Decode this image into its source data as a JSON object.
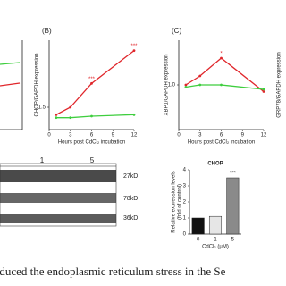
{
  "chart_data": [
    {
      "type": "line",
      "title": "(B)",
      "xlabel": "Hours post CdCl₂ incubation",
      "ylabel": "CHOP/GAPDH expression",
      "x": [
        1,
        3,
        6,
        12
      ],
      "xlim": [
        0,
        12
      ],
      "xticks": [
        0,
        3,
        6,
        9,
        12
      ],
      "ylim": [
        0,
        6
      ],
      "yticks": [
        {
          "value": 1.5,
          "label": "1.5"
        }
      ],
      "series": [
        {
          "color": "#e0262b",
          "values": [
            1.0,
            1.5,
            3.1,
            5.3
          ],
          "annotations": [
            null,
            null,
            "***",
            "***"
          ]
        },
        {
          "color": "#3fce3f",
          "values": [
            0.8,
            0.8,
            0.9,
            1.0
          ]
        }
      ]
    },
    {
      "type": "line",
      "title": "(C)",
      "xlabel": "Hours post CdCl₂ incubation",
      "ylabel": "XBP1/GAPDH expression",
      "x": [
        1,
        3,
        6,
        12
      ],
      "xlim": [
        0,
        12
      ],
      "xticks": [
        0,
        3,
        6,
        9,
        12
      ],
      "ylim": [
        0,
        2
      ],
      "yticks": [
        {
          "value": 1.0,
          "label": "1.0"
        }
      ],
      "series": [
        {
          "color": "#e0262b",
          "values": [
            1.0,
            1.2,
            1.6,
            0.85
          ],
          "annotations": [
            null,
            null,
            "*",
            null
          ]
        },
        {
          "color": "#3fce3f",
          "values": [
            0.95,
            1.0,
            1.0,
            0.9
          ]
        }
      ]
    },
    {
      "type": "bar",
      "title": "CHOP",
      "xlabel": "CdCl₂ (μM)",
      "ylabel": "Relative expression levels\n(fold of control)",
      "categories": [
        "0",
        "1",
        "5"
      ],
      "values": [
        1.0,
        1.1,
        3.5
      ],
      "colors": [
        "#111111",
        "#e6e6e6",
        "#8a8a8a"
      ],
      "ylim": [
        0,
        4
      ],
      "yticks": [
        0,
        1,
        2,
        3,
        4
      ],
      "annotations": [
        null,
        null,
        "***"
      ]
    }
  ],
  "blot": {
    "lanes": [
      "1",
      "5"
    ],
    "markers": [
      "27kD",
      "78kD",
      "36kD"
    ]
  },
  "partial_ylabel": "GRP78/GAPDH expression",
  "caption": "ment induced the endoplasmic reticulum stress in the Se"
}
